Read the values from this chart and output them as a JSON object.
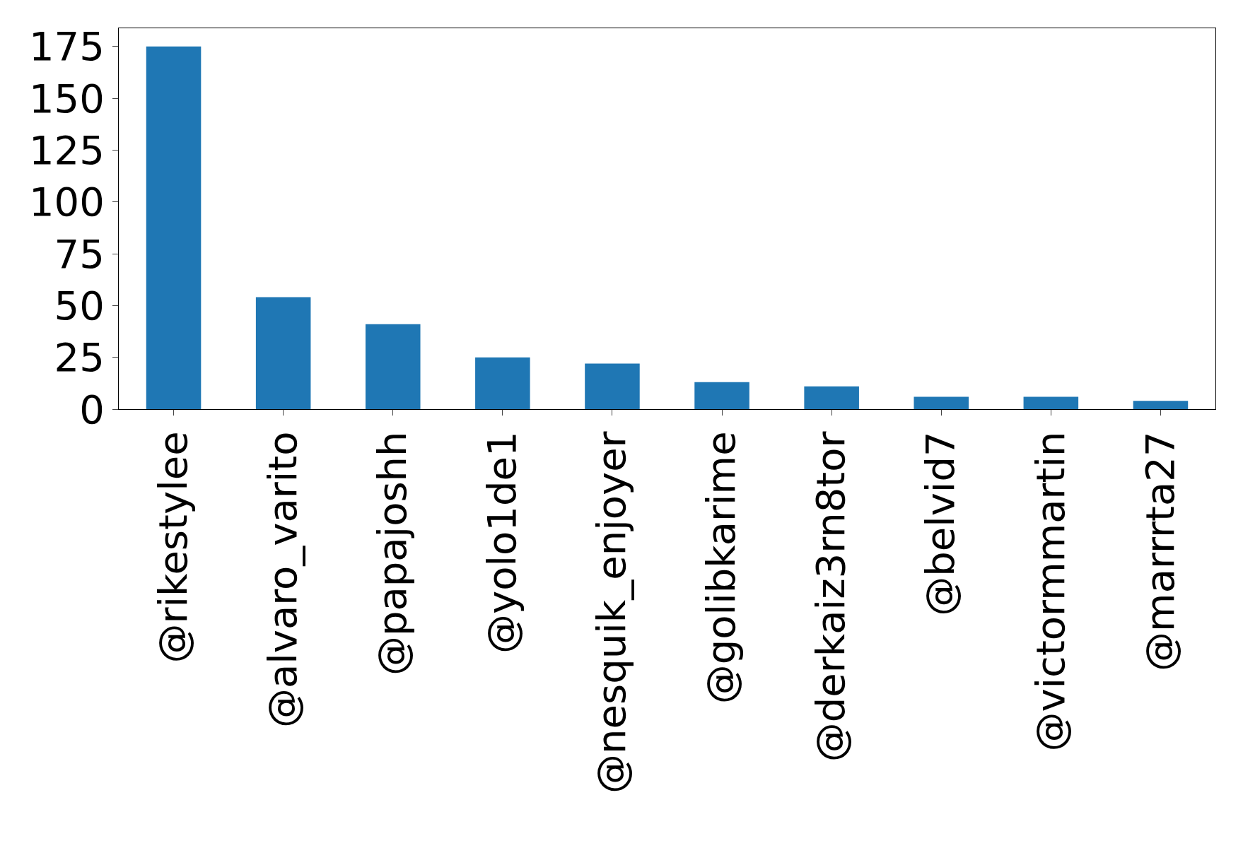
{
  "chart_data": {
    "type": "bar",
    "categories": [
      "@rikestylee",
      "@alvaro_varito",
      "@papajoshh",
      "@yolo1de1",
      "@nesquik_enjoyer",
      "@golibkarime",
      "@derkaiz3rn8tor",
      "@belvid7",
      "@victormmartin",
      "@marrrta27"
    ],
    "values": [
      175,
      54,
      41,
      25,
      22,
      13,
      11,
      6,
      6,
      4
    ],
    "color": "#1f77b4",
    "ylim": [
      0,
      183.75
    ],
    "yticks": [
      0,
      25,
      50,
      75,
      100,
      125,
      150,
      175
    ],
    "grid": false
  }
}
